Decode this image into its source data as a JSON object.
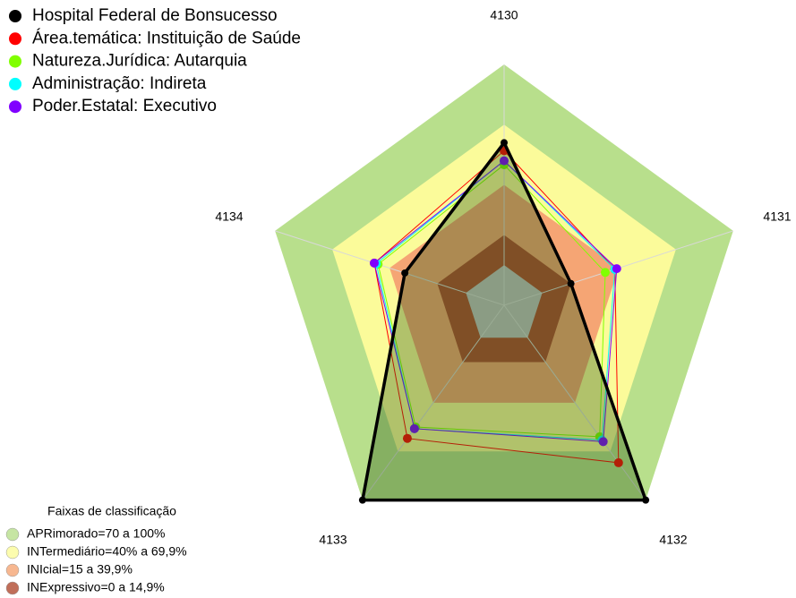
{
  "chart_data": {
    "type": "radar",
    "categories": [
      "4130",
      "4131",
      "4132",
      "4133",
      "4134"
    ],
    "rlim": [
      -20,
      100
    ],
    "series": [
      {
        "name": "Hospital Federal de Bonsucesso",
        "color": "#000000",
        "values": [
          61,
          15,
          100,
          100,
          32
        ]
      },
      {
        "name": "Área.temática: Instituição de Saúde",
        "color": "#ff0000",
        "values": [
          57,
          38,
          77,
          62,
          48
        ]
      },
      {
        "name": "Natureza.Jurídica: Autarquia",
        "color": "#80ff00",
        "values": [
          50,
          33,
          61,
          55,
          46
        ]
      },
      {
        "name": "Administração: Indireta",
        "color": "#00ffff",
        "values": [
          52,
          38,
          63,
          56,
          47
        ]
      },
      {
        "name": "Poder.Estatal: Executivo",
        "color": "#8000ff",
        "values": [
          52,
          39,
          64,
          56,
          48
        ]
      }
    ],
    "bands_title": "Faixas de classificação",
    "bands": [
      {
        "label": "APRimorado=70 a 100%",
        "from": 70,
        "to": 100,
        "color": "#b8df8c"
      },
      {
        "label": "INTermediário=40% a 69,9%",
        "from": 40,
        "to": 70,
        "color": "#fbfb9a"
      },
      {
        "label": "INIcial=15 a 39,9%",
        "from": 15,
        "to": 40,
        "color": "#f5a574"
      },
      {
        "label": "INExpressivo=0 a 14,9%",
        "from": 0,
        "to": 15,
        "color": "#b04a30"
      }
    ]
  }
}
